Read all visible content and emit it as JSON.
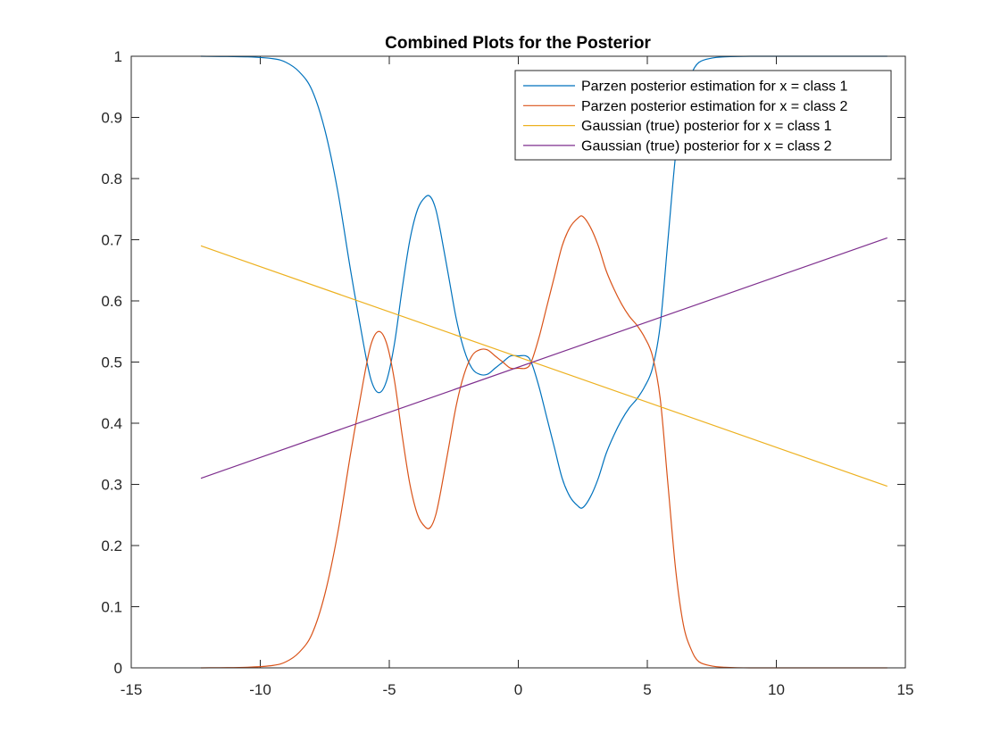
{
  "chart_data": {
    "type": "line",
    "title": "Combined Plots for the Posterior",
    "xlabel": "",
    "ylabel": "",
    "xlim": [
      -15,
      15
    ],
    "ylim": [
      0,
      1
    ],
    "x_ticks": [
      -15,
      -10,
      -5,
      0,
      5,
      10,
      15
    ],
    "y_ticks": [
      0,
      0.1,
      0.2,
      0.3,
      0.4,
      0.5,
      0.6,
      0.7,
      0.8,
      0.9,
      1
    ],
    "x_tick_labels": [
      "-15",
      "-10",
      "-5",
      "0",
      "5",
      "10",
      "15"
    ],
    "y_tick_labels": [
      "0",
      "0.1",
      "0.2",
      "0.3",
      "0.4",
      "0.5",
      "0.6",
      "0.7",
      "0.8",
      "0.9",
      "1"
    ],
    "grid": false,
    "legend_position": "top-right",
    "series": [
      {
        "name": "Parzen posterior estimation for x = class 1",
        "color": "#0072BD",
        "x": [
          -12.3,
          -10.5,
          -9.5,
          -9.0,
          -8.5,
          -8.0,
          -7.5,
          -7.0,
          -6.5,
          -6.0,
          -5.7,
          -5.4,
          -5.1,
          -4.8,
          -4.5,
          -4.2,
          -3.9,
          -3.6,
          -3.4,
          -3.2,
          -3.0,
          -2.7,
          -2.4,
          -2.1,
          -1.8,
          -1.5,
          -1.2,
          -0.9,
          -0.6,
          -0.3,
          0.0,
          0.3,
          0.5,
          0.8,
          1.1,
          1.4,
          1.7,
          2.0,
          2.3,
          2.5,
          2.8,
          3.1,
          3.4,
          3.7,
          4.0,
          4.3,
          4.6,
          4.9,
          5.2,
          5.5,
          5.8,
          6.1,
          6.4,
          6.7,
          7.0,
          7.5,
          8.0,
          9.0,
          11.0,
          14.3
        ],
        "y": [
          1.0,
          0.999,
          0.996,
          0.99,
          0.975,
          0.945,
          0.88,
          0.78,
          0.65,
          0.53,
          0.47,
          0.45,
          0.47,
          0.53,
          0.62,
          0.7,
          0.75,
          0.77,
          0.77,
          0.75,
          0.71,
          0.64,
          0.57,
          0.52,
          0.49,
          0.48,
          0.48,
          0.49,
          0.5,
          0.51,
          0.51,
          0.51,
          0.5,
          0.46,
          0.41,
          0.36,
          0.31,
          0.28,
          0.265,
          0.262,
          0.28,
          0.31,
          0.35,
          0.38,
          0.405,
          0.425,
          0.44,
          0.46,
          0.49,
          0.56,
          0.7,
          0.84,
          0.93,
          0.97,
          0.99,
          0.997,
          0.999,
          1.0,
          1.0,
          1.0
        ]
      },
      {
        "name": "Parzen posterior estimation for x = class 2",
        "color": "#D95319",
        "x": [
          -12.3,
          -10.5,
          -9.5,
          -9.0,
          -8.5,
          -8.0,
          -7.5,
          -7.0,
          -6.5,
          -6.0,
          -5.7,
          -5.4,
          -5.1,
          -4.8,
          -4.5,
          -4.2,
          -3.9,
          -3.6,
          -3.4,
          -3.2,
          -3.0,
          -2.7,
          -2.4,
          -2.1,
          -1.8,
          -1.5,
          -1.2,
          -0.9,
          -0.6,
          -0.3,
          0.0,
          0.3,
          0.5,
          0.8,
          1.1,
          1.4,
          1.7,
          2.0,
          2.3,
          2.5,
          2.8,
          3.1,
          3.4,
          3.7,
          4.0,
          4.3,
          4.6,
          4.9,
          5.2,
          5.5,
          5.8,
          6.1,
          6.4,
          6.7,
          7.0,
          7.5,
          8.0,
          9.0,
          11.0,
          14.3
        ],
        "y": [
          0.0,
          0.001,
          0.004,
          0.01,
          0.025,
          0.055,
          0.12,
          0.22,
          0.35,
          0.47,
          0.53,
          0.55,
          0.53,
          0.47,
          0.38,
          0.3,
          0.25,
          0.23,
          0.23,
          0.25,
          0.29,
          0.36,
          0.43,
          0.48,
          0.51,
          0.52,
          0.52,
          0.51,
          0.5,
          0.49,
          0.49,
          0.49,
          0.5,
          0.54,
          0.59,
          0.64,
          0.69,
          0.72,
          0.735,
          0.738,
          0.72,
          0.69,
          0.65,
          0.62,
          0.595,
          0.575,
          0.56,
          0.54,
          0.51,
          0.44,
          0.3,
          0.16,
          0.07,
          0.03,
          0.01,
          0.003,
          0.001,
          0.0,
          0.0,
          0.0
        ]
      },
      {
        "name": "Gaussian (true) posterior for x = class 1",
        "color": "#EDB120",
        "x": [
          -12.3,
          14.3
        ],
        "y": [
          0.69,
          0.297
        ]
      },
      {
        "name": "Gaussian (true) posterior for x = class 2",
        "color": "#7E2F8E",
        "x": [
          -12.3,
          14.3
        ],
        "y": [
          0.31,
          0.703
        ]
      }
    ]
  }
}
